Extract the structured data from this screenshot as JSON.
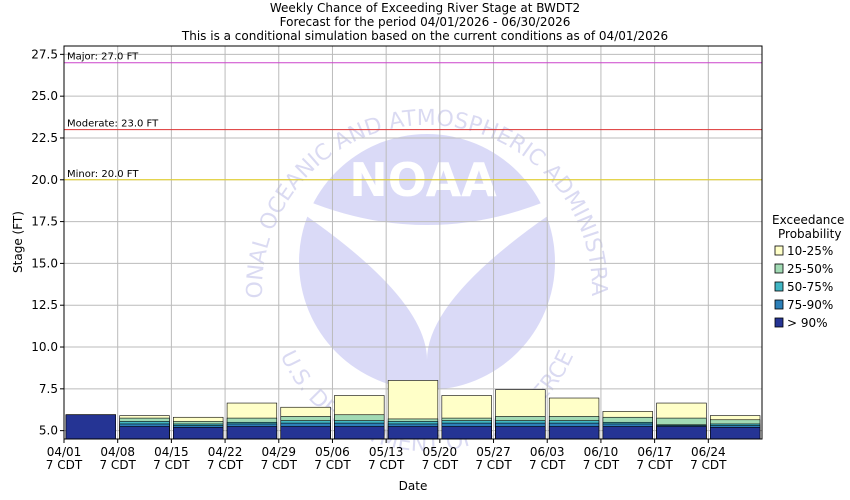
{
  "title_lines": [
    "Weekly Chance of Exceeding River Stage at BWDT2",
    "Forecast for the period 04/01/2026 - 06/30/2026",
    "This is a conditional simulation based on the current conditions as of 04/01/2026"
  ],
  "watermark": {
    "arc_text_top": "NATIONAL OCEANIC AND ATMOSPHERIC ADMINISTRATION",
    "arc_text_bottom": "U.S. DEPARTMENT OF COMMERCE",
    "logo_text": "NOAA"
  },
  "legend": {
    "title_lines": [
      "Exceedance",
      "Probability"
    ],
    "items": [
      {
        "label": "10-25%",
        "color": "#ffffc8"
      },
      {
        "label": "25-50%",
        "color": "#a1dab4"
      },
      {
        "label": "50-75%",
        "color": "#41b6c4"
      },
      {
        "label": "75-90%",
        "color": "#2c7fb8"
      },
      {
        "label": "> 90%",
        "color": "#253494"
      }
    ]
  },
  "chart_data": {
    "type": "bar",
    "title": "Weekly Chance of Exceeding River Stage at BWDT2",
    "xlabel": "Date",
    "ylabel": "Stage (FT)",
    "ylim": [
      4.5,
      28
    ],
    "yticks": [
      "5.0",
      "7.5",
      "10.0",
      "12.5",
      "15.0",
      "17.5",
      "20.0",
      "22.5",
      "25.0",
      "27.5"
    ],
    "ytick_values": [
      5.0,
      7.5,
      10.0,
      12.5,
      15.0,
      17.5,
      20.0,
      22.5,
      25.0,
      27.5
    ],
    "grid": true,
    "legend_position": "right",
    "categories": [
      "04/01",
      "04/08",
      "04/15",
      "04/22",
      "04/29",
      "05/06",
      "05/13",
      "05/20",
      "05/27",
      "06/03",
      "06/10",
      "06/17",
      "06/24"
    ],
    "category_sublabels": [
      "7 CDT",
      "7 CDT",
      "7 CDT",
      "7 CDT",
      "7 CDT",
      "7 CDT",
      "7 CDT",
      "7 CDT",
      "7 CDT",
      "7 CDT",
      "7 CDT",
      "7 CDT",
      "7 CDT"
    ],
    "series": [
      {
        "name": "> 90%",
        "values": [
          5.95,
          5.25,
          5.2,
          5.25,
          5.25,
          5.25,
          5.25,
          5.25,
          5.25,
          5.25,
          5.25,
          5.25,
          5.2
        ]
      },
      {
        "name": "75-90%",
        "values": [
          5.95,
          5.4,
          5.3,
          5.4,
          5.45,
          5.45,
          5.4,
          5.45,
          5.45,
          5.45,
          5.4,
          5.3,
          5.3
        ]
      },
      {
        "name": "50-75%",
        "values": [
          5.95,
          5.55,
          5.4,
          5.5,
          5.6,
          5.6,
          5.55,
          5.6,
          5.6,
          5.6,
          5.5,
          5.35,
          5.4
        ]
      },
      {
        "name": "25-50%",
        "values": [
          5.95,
          5.75,
          5.55,
          5.75,
          5.85,
          5.95,
          5.7,
          5.75,
          5.85,
          5.85,
          5.8,
          5.75,
          5.65
        ]
      },
      {
        "name": "10-25%",
        "values": [
          5.95,
          5.9,
          5.8,
          6.65,
          6.4,
          7.1,
          8.0,
          7.1,
          7.45,
          6.95,
          6.15,
          6.65,
          5.9
        ]
      }
    ],
    "thresholds": [
      {
        "label": "Major: 27.0 FT",
        "value": 27.0,
        "color": "#cc44cc"
      },
      {
        "label": "Moderate: 23.0 FT",
        "value": 23.0,
        "color": "#dd3333"
      },
      {
        "label": "Minor: 20.0 FT",
        "value": 20.0,
        "color": "#e6d21e"
      }
    ]
  }
}
